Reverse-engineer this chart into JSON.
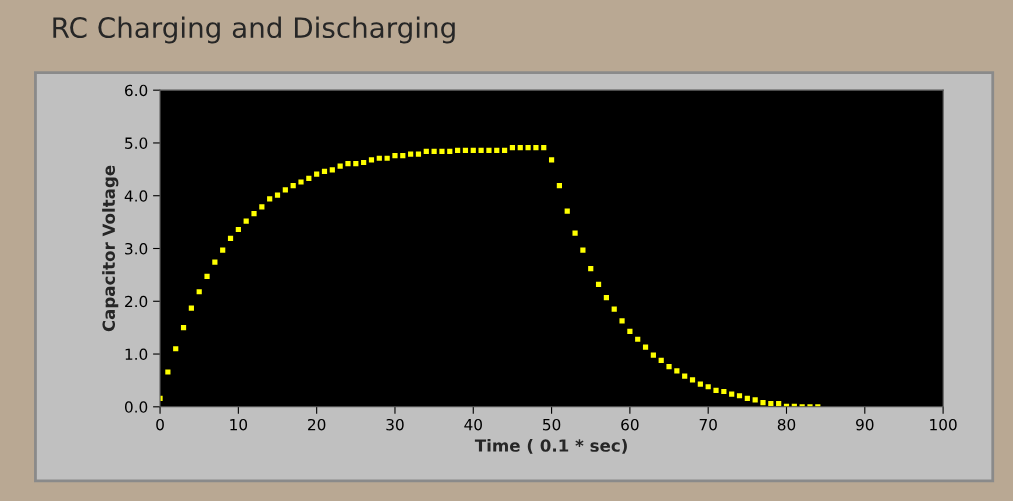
{
  "chart_data": {
    "type": "scatter",
    "title": "RC Charging and Discharging",
    "xlabel": "Time ( 0.1 * sec)",
    "ylabel": "Capacitor Voltage",
    "x": [
      0,
      1,
      2,
      3,
      4,
      5,
      6,
      7,
      8,
      9,
      10,
      11,
      12,
      13,
      14,
      15,
      16,
      17,
      18,
      19,
      20,
      21,
      22,
      23,
      24,
      25,
      26,
      27,
      28,
      29,
      30,
      31,
      32,
      33,
      34,
      35,
      36,
      37,
      38,
      39,
      40,
      41,
      42,
      43,
      44,
      45,
      46,
      47,
      48,
      49,
      50,
      51,
      52,
      53,
      54,
      55,
      56,
      57,
      58,
      59,
      60,
      61,
      62,
      63,
      64,
      65,
      66,
      67,
      68,
      69,
      70,
      71,
      72,
      73,
      74,
      75,
      76,
      77,
      78,
      79,
      80,
      81,
      82,
      83,
      84
    ],
    "series": [
      {
        "color": "#ffff00",
        "values": [
          0.16,
          0.66,
          1.1,
          1.5,
          1.87,
          2.18,
          2.47,
          2.74,
          2.97,
          3.19,
          3.36,
          3.52,
          3.66,
          3.79,
          3.94,
          4.01,
          4.11,
          4.19,
          4.26,
          4.33,
          4.41,
          4.46,
          4.49,
          4.56,
          4.61,
          4.61,
          4.63,
          4.68,
          4.71,
          4.71,
          4.76,
          4.76,
          4.79,
          4.79,
          4.84,
          4.84,
          4.84,
          4.84,
          4.86,
          4.86,
          4.86,
          4.86,
          4.86,
          4.86,
          4.86,
          4.91,
          4.91,
          4.91,
          4.91,
          4.91,
          4.68,
          4.19,
          3.71,
          3.29,
          2.97,
          2.62,
          2.32,
          2.07,
          1.85,
          1.63,
          1.43,
          1.28,
          1.13,
          0.98,
          0.88,
          0.76,
          0.68,
          0.58,
          0.51,
          0.43,
          0.38,
          0.31,
          0.29,
          0.24,
          0.21,
          0.16,
          0.13,
          0.08,
          0.06,
          0.06,
          0.01,
          0.01,
          0,
          0,
          0
        ]
      }
    ],
    "marker": "square",
    "grid": false,
    "xlim": [
      0,
      100
    ],
    "xticks": [
      0,
      10,
      20,
      30,
      40,
      50,
      60,
      70,
      80,
      90,
      100
    ],
    "ylim": [
      0,
      6
    ],
    "yticks": [
      {
        "value": 0,
        "label": "0.0"
      },
      {
        "value": 1,
        "label": "1.0"
      },
      {
        "value": 2,
        "label": "2.0"
      },
      {
        "value": 3,
        "label": "3.0"
      },
      {
        "value": 4,
        "label": "4.0"
      },
      {
        "value": 5,
        "label": "5.0"
      },
      {
        "value": 6,
        "label": "6.0"
      }
    ]
  }
}
